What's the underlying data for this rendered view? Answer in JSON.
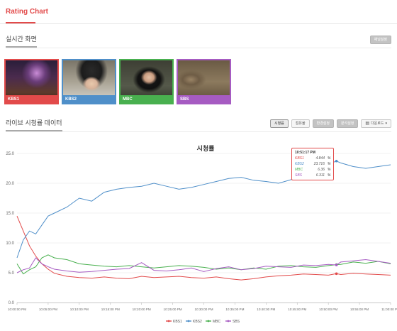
{
  "app": {
    "title": "Rating Chart"
  },
  "live_section": {
    "title": "실시간 화면",
    "settings_button": "채널설정"
  },
  "channels": [
    {
      "name": "KBS1",
      "color": "#e24a4a"
    },
    {
      "name": "KBS2",
      "color": "#4f8fc9"
    },
    {
      "name": "MBC",
      "color": "#49b04f"
    },
    {
      "name": "SBS",
      "color": "#a65bc2"
    }
  ],
  "data_section": {
    "title": "라이브 시청률 데이터",
    "buttons": [
      "시청률",
      "점유율",
      "환경설정",
      "분석설정"
    ],
    "download_label": "다운로드"
  },
  "tooltip": {
    "time": "10:51:17 PM",
    "rows": [
      {
        "name": "KBS1",
        "value": "4.844",
        "unit": "%"
      },
      {
        "name": "KBS2",
        "value": "23.716",
        "unit": "%"
      },
      {
        "name": "MBC",
        "value": "6.36",
        "unit": "%"
      },
      {
        "name": "SBS",
        "value": "6.311",
        "unit": "%"
      }
    ]
  },
  "chart_data": {
    "type": "line",
    "title": "시청률",
    "xlabel": "",
    "ylabel": "",
    "ylim": [
      0,
      25
    ],
    "yticks": [
      "0.0",
      "5.0",
      "10.0",
      "15.0",
      "20.0",
      "25.0"
    ],
    "xticks": [
      "10:00:00 PM",
      "10:05:00 PM",
      "10:10:00 PM",
      "10:15:00 PM",
      "10:20:00 PM",
      "10:25:00 PM",
      "10:30:00 PM",
      "10:35:00 PM",
      "10:40:00 PM",
      "10:45:00 PM",
      "10:50:00 PM",
      "10:55:00 PM",
      "11:00:00 PM"
    ],
    "grid": true,
    "legend": "bottom",
    "x": [
      0,
      1,
      2,
      3,
      4,
      5,
      6,
      8,
      10,
      12,
      14,
      16,
      18,
      20,
      22,
      24,
      26,
      28,
      30,
      32,
      34,
      36,
      38,
      40,
      42,
      44,
      46,
      48,
      50,
      51.3,
      52,
      54,
      56,
      58,
      60
    ],
    "series": [
      {
        "name": "KBS1",
        "color": "#e24a4a",
        "values": [
          14.5,
          12.0,
          9.5,
          7.8,
          6.5,
          5.6,
          4.9,
          4.4,
          4.2,
          4.1,
          4.3,
          4.1,
          4.0,
          4.4,
          4.2,
          4.3,
          4.4,
          4.2,
          4.1,
          4.3,
          4.0,
          3.8,
          4.0,
          4.3,
          4.5,
          4.6,
          4.8,
          4.7,
          4.6,
          4.84,
          4.7,
          4.9,
          4.8,
          4.7,
          4.6
        ]
      },
      {
        "name": "KBS2",
        "color": "#4f8fc9",
        "values": [
          7.5,
          10.5,
          12.0,
          11.5,
          13.0,
          14.5,
          15.0,
          16.0,
          17.5,
          17.0,
          18.5,
          19.0,
          19.3,
          19.5,
          20.0,
          19.5,
          19.0,
          19.3,
          19.8,
          20.3,
          20.8,
          21.0,
          20.5,
          20.3,
          20.0,
          20.6,
          21.2,
          22.0,
          23.2,
          23.72,
          23.4,
          22.8,
          22.5,
          22.8,
          23.1
        ]
      },
      {
        "name": "MBC",
        "color": "#49b04f",
        "values": [
          6.5,
          4.8,
          5.5,
          6.0,
          7.5,
          8.0,
          7.5,
          7.2,
          6.5,
          6.3,
          6.1,
          6.0,
          6.2,
          6.0,
          5.8,
          6.0,
          6.2,
          6.1,
          5.9,
          5.6,
          5.8,
          5.5,
          5.8,
          5.6,
          6.1,
          6.2,
          6.0,
          5.9,
          6.2,
          6.36,
          6.4,
          6.8,
          6.6,
          6.9,
          6.5
        ]
      },
      {
        "name": "SBS",
        "color": "#a65bc2",
        "values": [
          5.0,
          5.5,
          5.8,
          7.5,
          6.5,
          6.0,
          5.6,
          5.3,
          5.1,
          5.2,
          5.4,
          5.6,
          5.7,
          6.7,
          5.4,
          5.3,
          5.5,
          5.8,
          5.2,
          5.7,
          6.0,
          5.5,
          5.7,
          6.1,
          6.0,
          5.9,
          6.3,
          6.2,
          6.4,
          6.31,
          6.8,
          7.0,
          7.2,
          6.9,
          6.6
        ]
      }
    ],
    "highlight_x": 51.3
  }
}
